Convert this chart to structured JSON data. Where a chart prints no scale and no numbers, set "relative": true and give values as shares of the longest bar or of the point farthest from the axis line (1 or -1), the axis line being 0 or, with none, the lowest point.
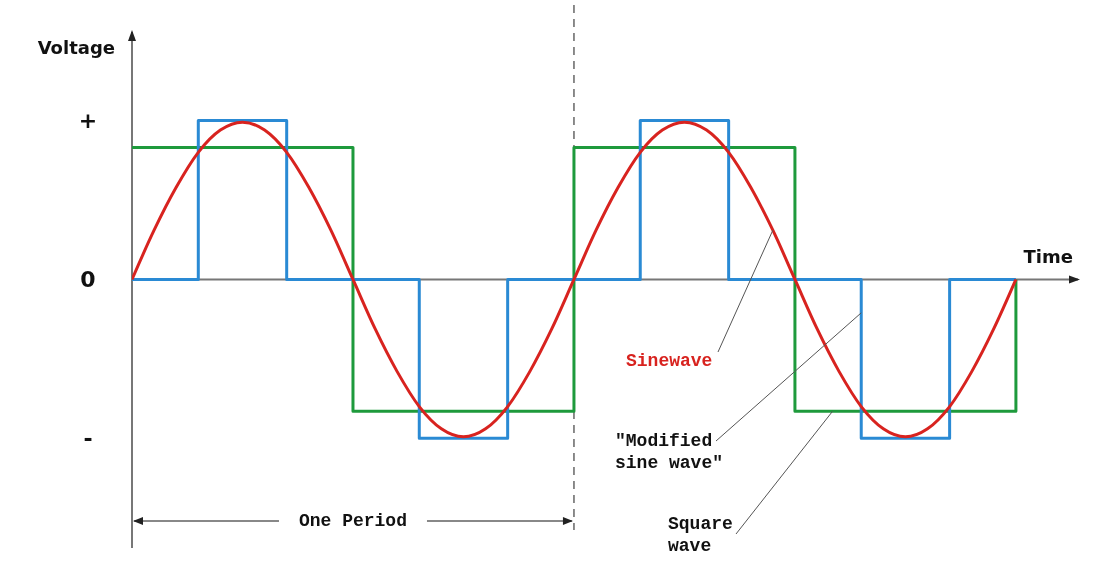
{
  "chart_data": {
    "type": "line",
    "relative": true,
    "xlabel": "Time",
    "ylabel": "Voltage",
    "categories": [
      null,
      null,
      null,
      null,
      null,
      null,
      null,
      null,
      null,
      null,
      null,
      null,
      null,
      null,
      null,
      null,
      null,
      null,
      null,
      null,
      null,
      null,
      null,
      null,
      null,
      null,
      null,
      null,
      null,
      null,
      null,
      null,
      null,
      null,
      null,
      null,
      null,
      null,
      null,
      null,
      null
    ],
    "series": [
      {
        "name": "Square wave",
        "type": "step",
        "color": "#1e9a3c",
        "values": [
          0.83,
          0.83,
          0.83,
          0.83,
          0.83,
          0.83,
          0.83,
          0.83,
          0.83,
          0.83,
          -0.83,
          -0.83,
          -0.83,
          -0.83,
          -0.83,
          -0.83,
          -0.83,
          -0.83,
          -0.83,
          -0.83,
          0.83,
          0.83,
          0.83,
          0.83,
          0.83,
          0.83,
          0.83,
          0.83,
          0.83,
          0.83,
          -0.83,
          -0.83,
          -0.83,
          -0.83,
          -0.83,
          -0.83,
          -0.83,
          -0.83,
          -0.83,
          -0.83,
          0
        ]
      },
      {
        "name": "\"Modified sine wave\"",
        "type": "step",
        "color": "#2a8ad4",
        "values": [
          0,
          0,
          0,
          1,
          1,
          1,
          1,
          0,
          0,
          0,
          0,
          0,
          0,
          -1,
          -1,
          -1,
          -1,
          0,
          0,
          0,
          0,
          0,
          0,
          1,
          1,
          1,
          1,
          0,
          0,
          0,
          0,
          0,
          0,
          -1,
          -1,
          -1,
          -1,
          0,
          0,
          0,
          0
        ]
      },
      {
        "name": "Sinewave",
        "type": "line",
        "color": "#d8231f",
        "values": [
          0,
          0.31,
          0.58,
          0.8,
          0.94,
          0.99,
          0.94,
          0.8,
          0.58,
          0.31,
          0,
          -0.31,
          -0.58,
          -0.8,
          -0.94,
          -0.99,
          -0.94,
          -0.8,
          -0.58,
          -0.31,
          0,
          0.31,
          0.58,
          0.8,
          0.94,
          0.99,
          0.94,
          0.8,
          0.58,
          0.31,
          0,
          -0.31,
          -0.58,
          -0.8,
          -0.94,
          -0.99,
          -0.94,
          -0.8,
          -0.58,
          -0.31,
          0
        ]
      }
    ],
    "annotations": [
      "+",
      "0",
      "-",
      "One Period"
    ]
  }
}
